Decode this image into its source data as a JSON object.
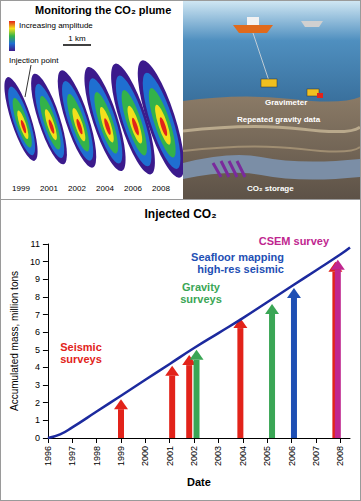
{
  "plume_panel": {
    "title": "Monitoring the CO₂ plume",
    "color_scale_label": "Increasing amplitude",
    "scale_bar": "1 km",
    "injection_label": "Injection point",
    "years": [
      "1999",
      "2001",
      "2002",
      "2004",
      "2006",
      "2008"
    ]
  },
  "illustration": {
    "labels": [
      "Gravimeter",
      "Repeated gravity data",
      "CO₂ storage"
    ]
  },
  "chart_data": {
    "type": "line",
    "title": "Injected CO₂",
    "x_label": "Date",
    "y_label": "Accumulated mass, million tons",
    "x": [
      1996,
      1996.5,
      1997,
      1998,
      1999,
      2000,
      2001,
      2002,
      2003,
      2004,
      2005,
      2006,
      2007,
      2008,
      2008.4
    ],
    "values": [
      0,
      0.2,
      0.6,
      1.5,
      2.4,
      3.3,
      4.2,
      5.1,
      5.95,
      6.8,
      7.7,
      8.6,
      9.5,
      10.4,
      10.8
    ],
    "color": "#1c2a9e",
    "series": [
      {
        "name": "Seismic surveys",
        "color": "#e2231a",
        "type": "bar",
        "marker": "arrow",
        "x": [
          1999,
          2001.1,
          2001.8,
          2003.9,
          2007.8
        ],
        "values": [
          2.2,
          4.1,
          4.7,
          6.8,
          10.0
        ]
      },
      {
        "name": "Gravity surveys",
        "color": "#3aa655",
        "type": "bar",
        "marker": "arrow",
        "x": [
          2002.1,
          2005.2
        ],
        "values": [
          5.0,
          7.6
        ]
      },
      {
        "name": "Seafloor mapping high-res seismic",
        "color": "#1e4fb4",
        "type": "bar",
        "marker": "arrow",
        "x": [
          2006.1
        ],
        "values": [
          8.5
        ]
      },
      {
        "name": "CSEM survey",
        "color": "#c0268f",
        "type": "bar",
        "marker": "arrow",
        "x": [
          2007.9
        ],
        "values": [
          10.1
        ]
      }
    ],
    "xlim": [
      1996,
      2008.4
    ],
    "xticks": [
      1996,
      1997,
      1998,
      1999,
      2000,
      2001,
      2002,
      2003,
      2004,
      2005,
      2006,
      2007,
      2008
    ],
    "ylim": [
      0,
      11
    ],
    "yticks": [
      0,
      1,
      2,
      3,
      4,
      5,
      6,
      7,
      8,
      9,
      10,
      11
    ],
    "grid": false
  }
}
